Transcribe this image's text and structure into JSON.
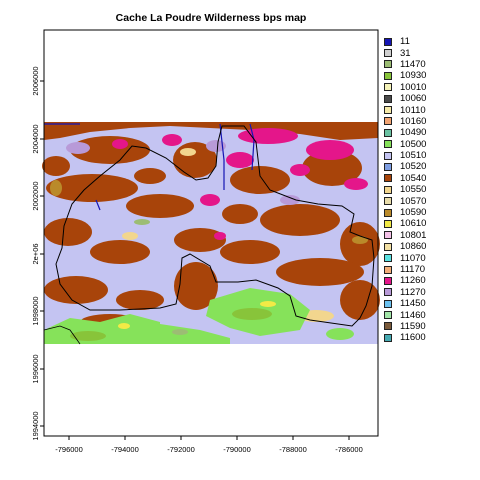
{
  "map": {
    "title": "Cache La Poudre Wilderness bps map",
    "x_ticks": [
      "-796000",
      "-794000",
      "-792000",
      "-790000",
      "-788000",
      "-786000"
    ],
    "y_ticks": [
      "2006000",
      "2004000",
      "2002000",
      "2e+06",
      "1998000",
      "1996000",
      "1994000"
    ]
  },
  "legend": {
    "items": [
      {
        "code": "11",
        "color": "#1515b4"
      },
      {
        "code": "31",
        "color": "#d0d0d0"
      },
      {
        "code": "11470",
        "color": "#9cbd74"
      },
      {
        "code": "10930",
        "color": "#88c43a"
      },
      {
        "code": "10010",
        "color": "#f4f2b8"
      },
      {
        "code": "10060",
        "color": "#4a4a4a"
      },
      {
        "code": "10110",
        "color": "#f6eaa8"
      },
      {
        "code": "10160",
        "color": "#f3a472"
      },
      {
        "code": "10490",
        "color": "#6ac2a2"
      },
      {
        "code": "10500",
        "color": "#86e25a"
      },
      {
        "code": "10510",
        "color": "#c4c4f2"
      },
      {
        "code": "10520",
        "color": "#7e9ee2"
      },
      {
        "code": "10540",
        "color": "#a8440a"
      },
      {
        "code": "10550",
        "color": "#f2d68e"
      },
      {
        "code": "10570",
        "color": "#e8dcaa"
      },
      {
        "code": "10590",
        "color": "#ba8a2a"
      },
      {
        "code": "10610",
        "color": "#f2ea46"
      },
      {
        "code": "10801",
        "color": "#f4c2e8"
      },
      {
        "code": "10860",
        "color": "#f2e0a4"
      },
      {
        "code": "11070",
        "color": "#5ae2e2"
      },
      {
        "code": "11170",
        "color": "#f2ae78"
      },
      {
        "code": "11260",
        "color": "#e4168a"
      },
      {
        "code": "11270",
        "color": "#b89ad8"
      },
      {
        "code": "11450",
        "color": "#6cc2f0"
      },
      {
        "code": "11460",
        "color": "#a2e6a8"
      },
      {
        "code": "11590",
        "color": "#7a5a3a"
      },
      {
        "code": "11600",
        "color": "#46aab2"
      }
    ]
  }
}
